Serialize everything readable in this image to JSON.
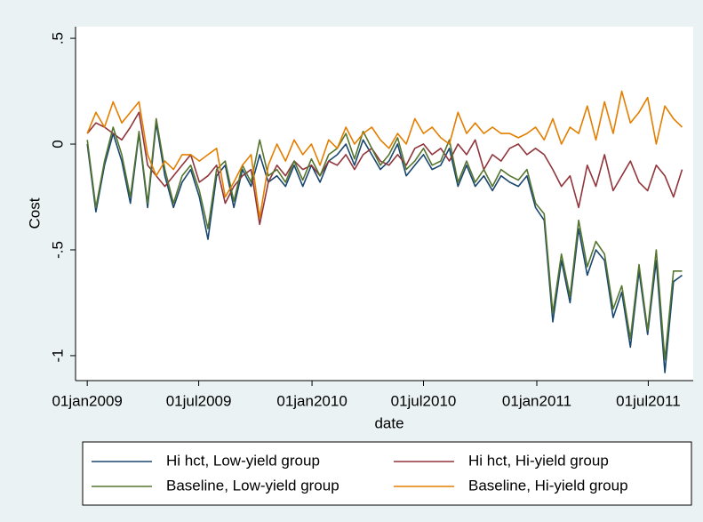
{
  "chart_data": {
    "type": "line",
    "y_label": "Cost",
    "x_label": "date",
    "x": [
      "2009-01-01",
      "2009-01-15",
      "2009-01-29",
      "2009-02-12",
      "2009-02-26",
      "2009-03-12",
      "2009-03-26",
      "2009-04-09",
      "2009-04-23",
      "2009-05-07",
      "2009-05-21",
      "2009-06-04",
      "2009-06-18",
      "2009-07-02",
      "2009-07-16",
      "2009-07-30",
      "2009-08-13",
      "2009-08-27",
      "2009-09-10",
      "2009-09-24",
      "2009-10-08",
      "2009-10-22",
      "2009-11-05",
      "2009-11-19",
      "2009-12-03",
      "2009-12-17",
      "2009-12-31",
      "2010-01-14",
      "2010-01-28",
      "2010-02-11",
      "2010-02-25",
      "2010-03-11",
      "2010-03-25",
      "2010-04-08",
      "2010-04-22",
      "2010-05-06",
      "2010-05-20",
      "2010-06-03",
      "2010-06-17",
      "2010-07-01",
      "2010-07-15",
      "2010-07-29",
      "2010-08-12",
      "2010-08-26",
      "2010-09-09",
      "2010-09-23",
      "2010-10-07",
      "2010-10-21",
      "2010-11-04",
      "2010-11-18",
      "2010-12-02",
      "2010-12-16",
      "2010-12-30",
      "2011-01-13",
      "2011-01-27",
      "2011-02-10",
      "2011-02-24",
      "2011-03-10",
      "2011-03-24",
      "2011-04-07",
      "2011-04-21",
      "2011-05-05",
      "2011-05-19",
      "2011-06-02",
      "2011-06-16",
      "2011-06-30",
      "2011-07-14",
      "2011-07-28",
      "2011-08-11",
      "2011-08-25"
    ],
    "series": [
      {
        "name": "Hi hct, Low-yield group",
        "color": "#1a476f",
        "values": [
          0.0,
          -0.32,
          -0.1,
          0.05,
          -0.08,
          -0.28,
          0.05,
          -0.3,
          0.1,
          -0.15,
          -0.3,
          -0.18,
          -0.12,
          -0.25,
          -0.45,
          -0.15,
          -0.1,
          -0.3,
          -0.12,
          -0.2,
          -0.05,
          -0.18,
          -0.15,
          -0.2,
          -0.1,
          -0.2,
          -0.1,
          -0.18,
          -0.08,
          -0.05,
          0.0,
          -0.1,
          0.02,
          -0.05,
          -0.12,
          -0.08,
          0.0,
          -0.15,
          -0.1,
          -0.05,
          -0.12,
          -0.1,
          -0.02,
          -0.2,
          -0.1,
          -0.2,
          -0.15,
          -0.22,
          -0.15,
          -0.18,
          -0.2,
          -0.15,
          -0.3,
          -0.36,
          -0.84,
          -0.55,
          -0.75,
          -0.4,
          -0.62,
          -0.5,
          -0.55,
          -0.82,
          -0.7,
          -0.96,
          -0.6,
          -0.9,
          -0.55,
          -1.08,
          -0.65,
          -0.62
        ]
      },
      {
        "name": "Hi hct, Hi-yield group",
        "color": "#90353b",
        "values": [
          0.05,
          0.1,
          0.08,
          0.05,
          0.02,
          0.08,
          0.15,
          -0.1,
          -0.15,
          -0.2,
          -0.15,
          -0.1,
          -0.05,
          -0.18,
          -0.15,
          -0.1,
          -0.28,
          -0.2,
          -0.15,
          -0.12,
          -0.38,
          -0.18,
          -0.1,
          -0.15,
          -0.08,
          -0.12,
          -0.1,
          -0.15,
          -0.08,
          -0.1,
          -0.05,
          -0.12,
          -0.05,
          -0.02,
          -0.08,
          -0.1,
          -0.05,
          -0.1,
          -0.02,
          0.0,
          -0.05,
          -0.02,
          -0.08,
          0.0,
          -0.05,
          0.02,
          -0.12,
          -0.05,
          -0.08,
          -0.02,
          0.0,
          -0.05,
          -0.02,
          -0.05,
          -0.12,
          -0.2,
          -0.15,
          -0.3,
          -0.1,
          -0.2,
          -0.05,
          -0.22,
          -0.15,
          -0.08,
          -0.18,
          -0.22,
          -0.1,
          -0.15,
          -0.25,
          -0.12
        ]
      },
      {
        "name": "Baseline, Low-yield group",
        "color": "#55752f",
        "values": [
          0.02,
          -0.3,
          -0.08,
          0.08,
          -0.05,
          -0.25,
          0.06,
          -0.28,
          0.12,
          -0.12,
          -0.28,
          -0.15,
          -0.1,
          -0.22,
          -0.4,
          -0.12,
          -0.08,
          -0.27,
          -0.1,
          -0.18,
          0.02,
          -0.15,
          -0.12,
          -0.18,
          -0.08,
          -0.17,
          -0.07,
          -0.15,
          -0.05,
          -0.02,
          0.05,
          -0.07,
          0.06,
          -0.02,
          -0.1,
          -0.05,
          0.03,
          -0.12,
          -0.08,
          -0.02,
          -0.1,
          -0.08,
          0.02,
          -0.18,
          -0.08,
          -0.18,
          -0.12,
          -0.2,
          -0.12,
          -0.15,
          -0.17,
          -0.12,
          -0.28,
          -0.33,
          -0.8,
          -0.52,
          -0.72,
          -0.36,
          -0.58,
          -0.46,
          -0.52,
          -0.78,
          -0.67,
          -0.92,
          -0.57,
          -0.88,
          -0.5,
          -1.02,
          -0.6,
          -0.6
        ]
      },
      {
        "name": "Baseline, Hi-yield group",
        "color": "#e37e00",
        "values": [
          0.05,
          0.15,
          0.08,
          0.2,
          0.1,
          0.15,
          0.2,
          -0.05,
          -0.15,
          -0.08,
          -0.12,
          -0.05,
          -0.05,
          -0.08,
          -0.05,
          -0.02,
          -0.25,
          -0.18,
          -0.1,
          -0.05,
          -0.35,
          -0.1,
          0.0,
          -0.08,
          0.02,
          -0.05,
          0.0,
          -0.1,
          0.02,
          -0.02,
          0.08,
          0.0,
          0.05,
          0.08,
          0.02,
          -0.02,
          0.05,
          0.0,
          0.12,
          0.05,
          0.08,
          0.03,
          0.0,
          0.15,
          0.05,
          0.1,
          0.05,
          0.08,
          0.05,
          0.05,
          0.03,
          0.05,
          0.08,
          0.02,
          0.12,
          0.0,
          0.08,
          0.05,
          0.18,
          0.02,
          0.2,
          0.05,
          0.25,
          0.1,
          0.15,
          0.22,
          0.0,
          0.18,
          0.12,
          0.08
        ]
      }
    ],
    "xlim": [
      "2008-12-13",
      "2011-09-12"
    ],
    "xticks": [
      {
        "value": "2009-01-01",
        "label": "01jan2009"
      },
      {
        "value": "2009-07-01",
        "label": "01jul2009"
      },
      {
        "value": "2010-01-01",
        "label": "01jan2010"
      },
      {
        "value": "2010-07-01",
        "label": "01jul2010"
      },
      {
        "value": "2011-01-01",
        "label": "01jan2011"
      },
      {
        "value": "2011-07-01",
        "label": "01jul2011"
      }
    ],
    "ylim": [
      -1.118,
      0.555
    ],
    "yticks": [
      {
        "value": 0.5,
        "label": ".5"
      },
      0,
      {
        "value": -0.5,
        "label": "-.5"
      },
      -1
    ],
    "grid": false,
    "legend": "bottom"
  }
}
